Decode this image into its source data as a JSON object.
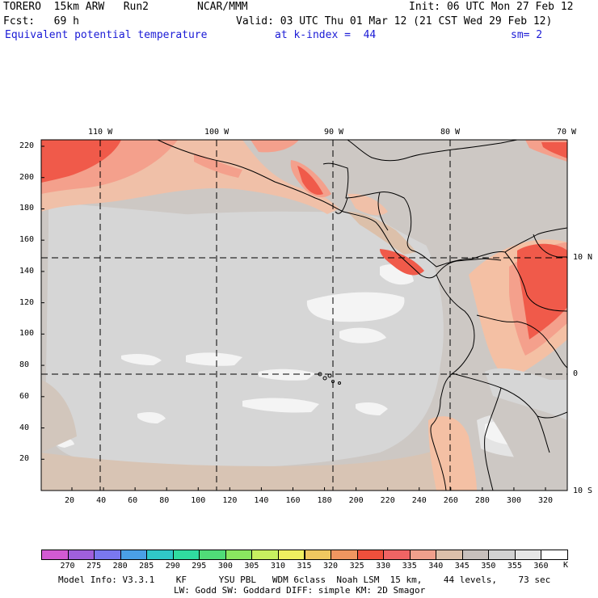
{
  "header": {
    "model": "TORERO  15km ARW   Run2",
    "org": "NCAR/MMM",
    "init": "Init: 06 UTC Mon 27 Feb 12",
    "fcst": "Fcst:   69 h",
    "valid": "Valid: 03 UTC Thu 01 Mar 12 (21 CST Wed 29 Feb 12)",
    "field": "Equivalent potential temperature",
    "level": "at k-index =  44",
    "smooth": "sm= 2"
  },
  "map": {
    "top_lon_labels": [
      "110 W",
      "100 W",
      "90 W",
      "80 W",
      "70 W"
    ],
    "right_lat_labels": [
      "10 N",
      "0",
      "10 S"
    ],
    "y_axis_labels": [
      "220",
      "200",
      "180",
      "160",
      "140",
      "120",
      "100",
      "80",
      "60",
      "40",
      "20"
    ],
    "x_axis_labels": [
      "20",
      "40",
      "60",
      "80",
      "100",
      "120",
      "140",
      "160",
      "180",
      "200",
      "220",
      "240",
      "260",
      "280",
      "300",
      "320"
    ]
  },
  "colorbar": {
    "unit": "K",
    "labels": [
      "270",
      "275",
      "280",
      "285",
      "290",
      "295",
      "300",
      "305",
      "310",
      "315",
      "320",
      "325",
      "330",
      "335",
      "340",
      "345",
      "350",
      "355",
      "360"
    ],
    "colors": [
      "#d25ad2",
      "#a060dc",
      "#7a78f0",
      "#4aa0e6",
      "#30c8c8",
      "#30dca0",
      "#50dc78",
      "#8ae660",
      "#c8f060",
      "#f0f060",
      "#f0c860",
      "#f09660",
      "#f0503c",
      "#f06464",
      "#f0a08c",
      "#dcc0aa",
      "#c8c0bc",
      "#d2d2d2",
      "#e6e6e6",
      "#ffffff"
    ]
  },
  "footer": {
    "line1": "Model Info: V3.3.1    KF      YSU PBL   WDM 6class  Noah LSM  15 km,    44 levels,    73 sec",
    "line2": "LW: Godd SW: Goddard DIFF: simple KM: 2D Smagor"
  },
  "palette": {
    "gray_bg": "#cdc8c4",
    "light_gray": "#d6d6d6",
    "tan": "#dcc0aa",
    "peach": "#f4c0a4",
    "salmon": "#f4a08c",
    "red": "#f05a4a",
    "white": "#f4f4f4"
  }
}
